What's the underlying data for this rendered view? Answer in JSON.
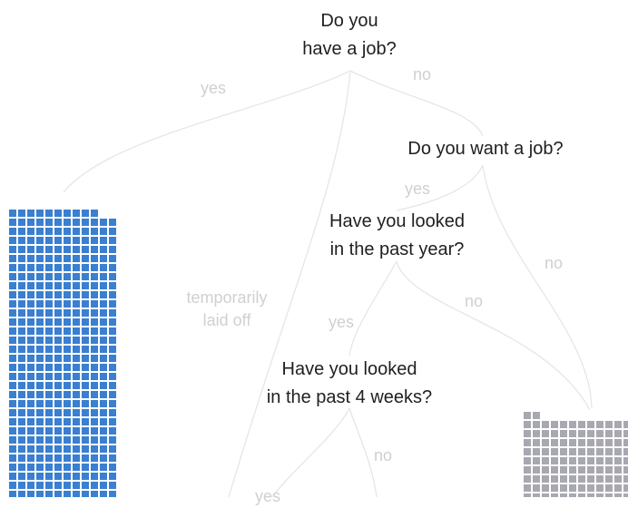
{
  "questions": {
    "q1": {
      "line1": "Do you",
      "line2": "have a job?"
    },
    "q2": {
      "line1": "Do you want a job?"
    },
    "q3": {
      "line1": "Have you looked",
      "line2": "in the past year?"
    },
    "q4": {
      "line1": "Have you looked",
      "line2": "in the past 4 weeks?"
    }
  },
  "branch_labels": {
    "q1_yes": "yes",
    "q1_no": "no",
    "q2_yes": "yes",
    "q2_no": "no",
    "q3_no": "no",
    "temp_line1": "temporarily",
    "temp_line2": "laid off",
    "q3_yes": "yes",
    "q4_no": "no",
    "q4_yes": "yes"
  },
  "colors": {
    "employed_square": "#3b7fd0",
    "not_in_labor_force_square": "#a8a8b0",
    "link": "#e6e6e6",
    "branch_label": "#d0d0d0"
  }
}
